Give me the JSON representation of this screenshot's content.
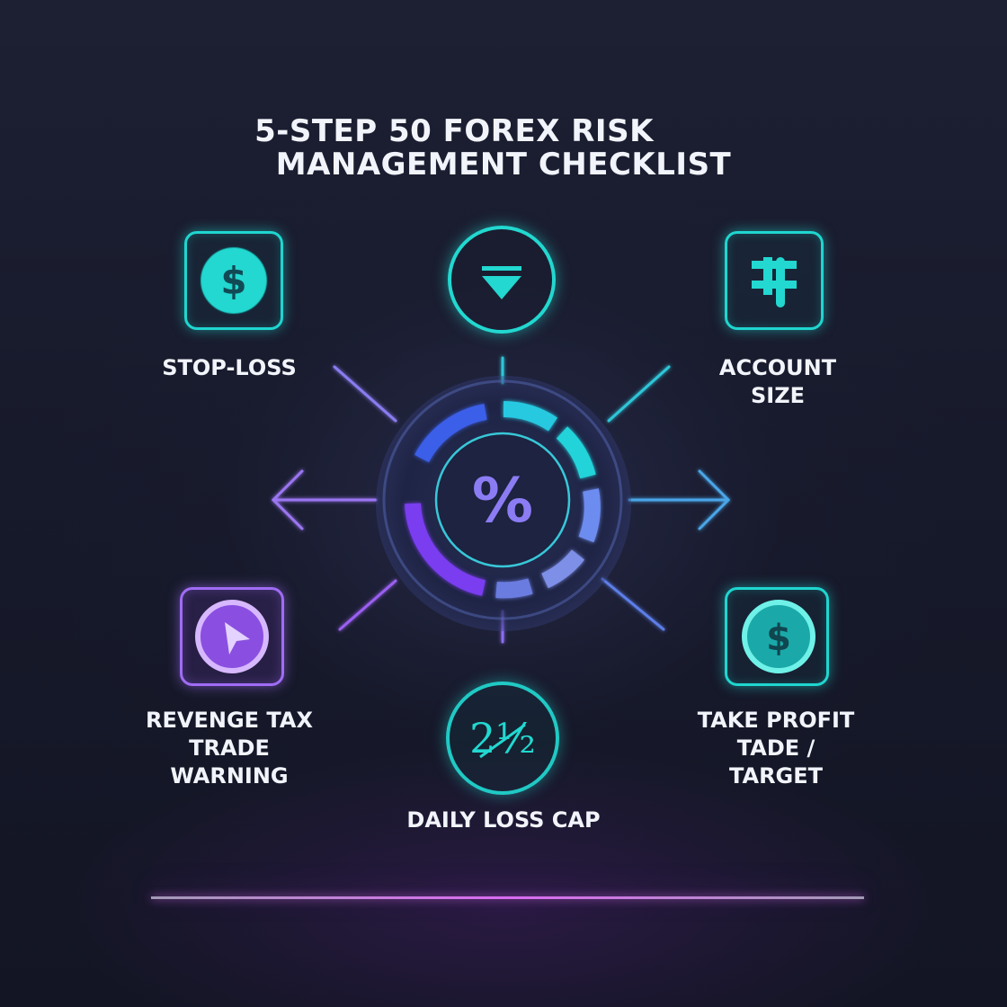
{
  "title": {
    "line1": "5-STEP 50 FOREX RISK",
    "line2": "MANAGEMENT CHECKLIST"
  },
  "items": {
    "stop_loss": {
      "label": "STOP-LOSS",
      "icon": "dollar-coin-icon"
    },
    "top_center": {
      "icon": "down-triangle-icon"
    },
    "account_size": {
      "line1": "ACCOUNT",
      "line2": "SIZE",
      "icon": "pillar-icon"
    },
    "revenge_trade": {
      "line1": "REVENGE TAX",
      "line2": "TRADE",
      "line3": "WARNING",
      "icon": "play-cursor-icon"
    },
    "daily_loss_cap": {
      "label": "DAILY LOSS CAP",
      "icon": "percent-icon",
      "icon_text": "2½"
    },
    "take_profit": {
      "line1": "TAKE PROFIT",
      "line2": "TADE /",
      "line3": "TARGET",
      "icon": "dollar-coin-icon"
    }
  },
  "center": {
    "symbol": "%",
    "icon": "percent-gauge-icon"
  },
  "colors": {
    "teal": "#1fd6cf",
    "purple": "#a06cf5",
    "blue": "#3b6cf0",
    "background": "#171a2b",
    "text": "#f2f4fb"
  }
}
